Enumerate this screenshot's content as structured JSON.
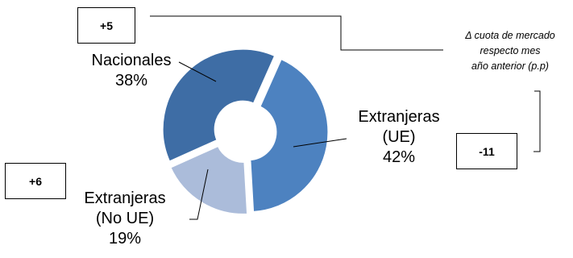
{
  "chart_data": {
    "type": "pie",
    "style": "donut",
    "title": "",
    "categories": [
      "Nacionales",
      "Extranjeras (UE)",
      "Extranjeras (No UE)"
    ],
    "values": [
      38,
      42,
      19
    ],
    "percent_labels": [
      "38%",
      "42%",
      "19%"
    ],
    "category_lines": [
      [
        "Nacionales"
      ],
      [
        "Extranjeras",
        "(UE)"
      ],
      [
        "Extranjeras",
        "(No UE)"
      ]
    ],
    "change_values": [
      "+5",
      "-11",
      "+6"
    ],
    "colors": [
      "#3e6da5",
      "#4d82c0",
      "#abbcda"
    ],
    "annotation_lines": [
      "Δ cuota de mercado",
      "respecto mes",
      "año anterior (p.p)"
    ],
    "legend": "none"
  }
}
